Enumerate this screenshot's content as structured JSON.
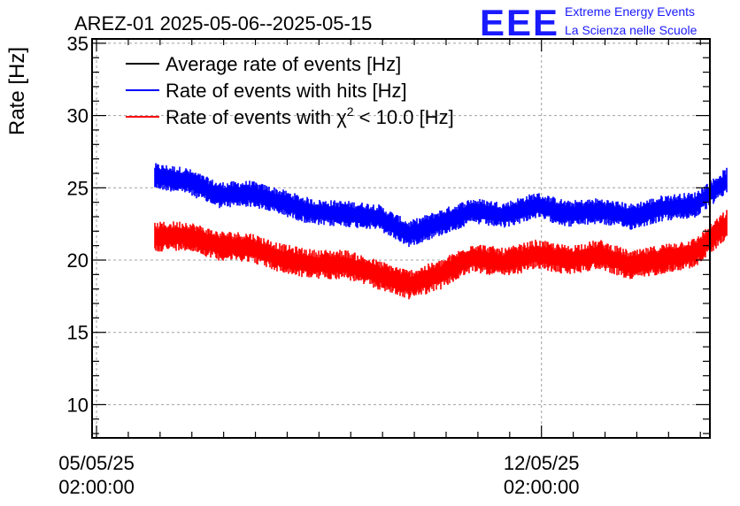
{
  "chart_data": {
    "type": "line",
    "title": "AREZ-01 2025-05-06--2025-05-15",
    "ylabel": "Rate [Hz]",
    "xlabel": "",
    "ylim": [
      7.7,
      35.3
    ],
    "yticks": [
      10,
      15,
      20,
      25,
      30,
      35
    ],
    "y_minor_step": 1,
    "x_range_days": [
      -0.07,
      9.65
    ],
    "x_start_date": "2025-05-05T02:00:00",
    "xticks": [
      {
        "day": 0,
        "date": "05/05/25",
        "time": "02:00:00"
      },
      {
        "day": 7,
        "date": "12/05/25",
        "time": "02:00:00"
      }
    ],
    "grid": true,
    "legend_position": "top-left",
    "legend": [
      {
        "label": "Average rate of events [Hz]",
        "color": "#000000"
      },
      {
        "label": "Rate of events with hits [Hz]",
        "color": "#0000ff"
      },
      {
        "label": "Rate of events with χ",
        "label_sup": "2",
        "label_tail": " < 10.0 [Hz]",
        "color": "#ff0000"
      }
    ],
    "series": [
      {
        "name": "Rate of events with hits [Hz]",
        "color": "#0000ff",
        "band_half_width": 0.8,
        "x": [
          "2025-05-06",
          "2025-05-06 12:00",
          "2025-05-07",
          "2025-05-07 12:00",
          "2025-05-08",
          "2025-05-08 12:00",
          "2025-05-09",
          "2025-05-09 12:00",
          "2025-05-10",
          "2025-05-10 12:00",
          "2025-05-11",
          "2025-05-11 12:00",
          "2025-05-12",
          "2025-05-12 12:00",
          "2025-05-13",
          "2025-05-13 12:00",
          "2025-05-14",
          "2025-05-14 12:00",
          "2025-05-15"
        ],
        "values": [
          25.8,
          25.5,
          24.5,
          24.6,
          24.0,
          23.3,
          23.2,
          23.0,
          21.8,
          22.6,
          23.4,
          23.1,
          23.8,
          23.2,
          23.4,
          23.0,
          23.6,
          23.8,
          25.5
        ]
      },
      {
        "name": "Rate of events with χ² < 10.0 [Hz]",
        "color": "#ff0000",
        "band_half_width": 0.9,
        "x": [
          "2025-05-06",
          "2025-05-06 12:00",
          "2025-05-07",
          "2025-05-07 12:00",
          "2025-05-08",
          "2025-05-08 12:00",
          "2025-05-09",
          "2025-05-09 12:00",
          "2025-05-10",
          "2025-05-10 12:00",
          "2025-05-11",
          "2025-05-11 12:00",
          "2025-05-12",
          "2025-05-12 12:00",
          "2025-05-13",
          "2025-05-13 12:00",
          "2025-05-14",
          "2025-05-14 12:00",
          "2025-05-15"
        ],
        "values": [
          21.6,
          21.7,
          21.0,
          20.9,
          20.1,
          19.7,
          19.7,
          19.0,
          18.3,
          19.0,
          20.2,
          19.8,
          20.4,
          20.0,
          20.4,
          19.6,
          20.1,
          20.5,
          22.5
        ]
      }
    ]
  },
  "logo": {
    "big": "EEE",
    "line1": "Extreme Energy Events",
    "line2": "La Scienza nelle Scuole"
  }
}
